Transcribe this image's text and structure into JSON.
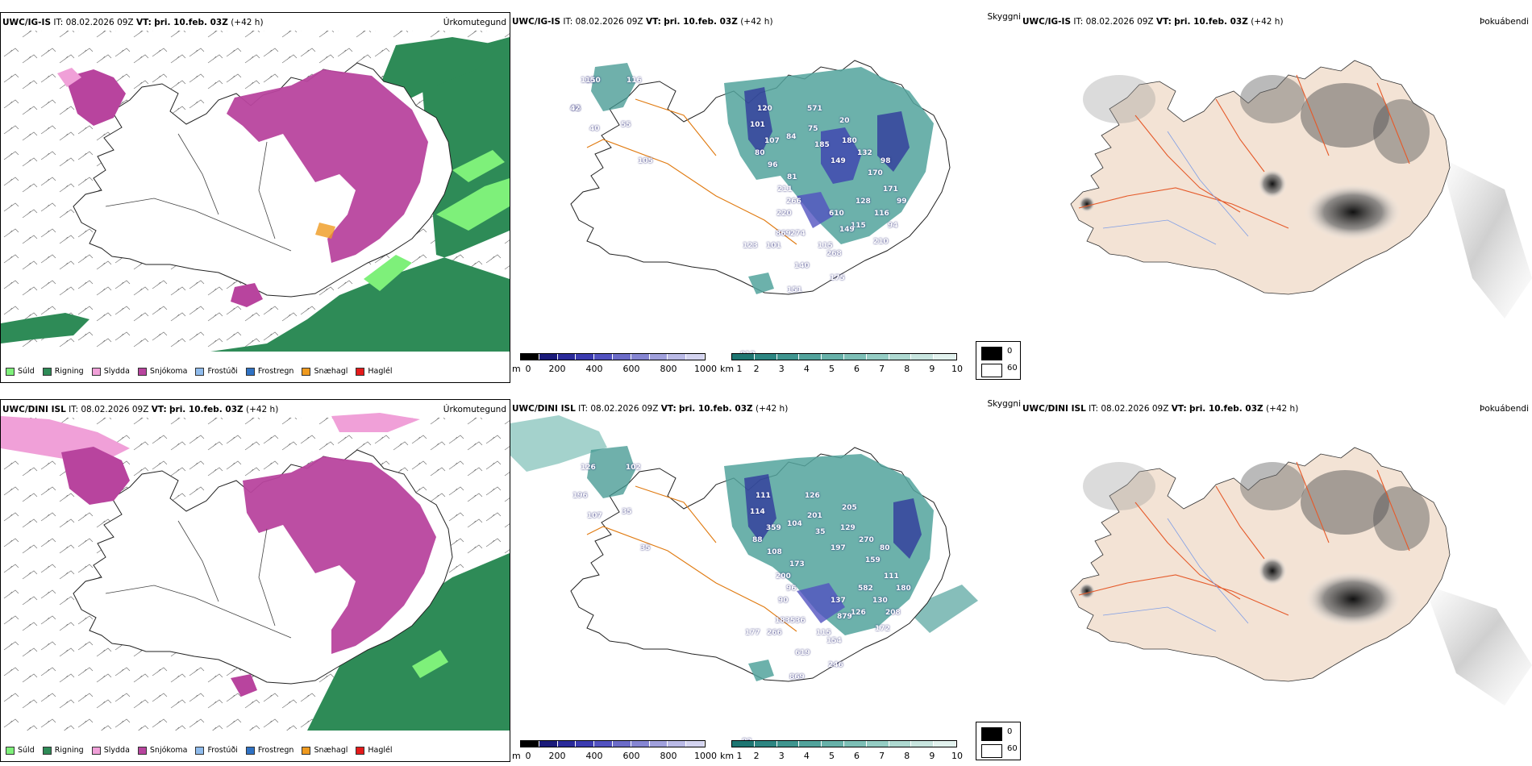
{
  "rows": [
    {
      "precip": {
        "model": "UWC/IG-IS",
        "it_label": "IT:",
        "it_value": "08.02.2026 09Z",
        "vt_label": "VT:",
        "vt_value": "þri. 10.feb. 03Z",
        "lead": "(+42 h)",
        "product": "Úrkomutegund"
      },
      "vis": {
        "model": "UWC/IG-IS",
        "it_label": "IT:",
        "it_value": "08.02.2026 09Z",
        "vt_label": "VT:",
        "vt_value": "þri. 10.feb. 03Z",
        "lead": "(+42 h)",
        "product": "Skyggni",
        "labels": [
          "111",
          "96",
          "40",
          "116",
          "55",
          "105",
          "120",
          "101",
          "107",
          "80",
          "96",
          "84",
          "81",
          "211",
          "266",
          "220",
          "571",
          "75",
          "185",
          "20",
          "180",
          "149",
          "132",
          "170",
          "98",
          "171",
          "128",
          "116",
          "115",
          "610",
          "149",
          "869",
          "101",
          "123",
          "115",
          "268",
          "210",
          "94",
          "99",
          "140",
          "151",
          "175",
          "274",
          "812",
          "150",
          "42"
        ]
      },
      "fog": {
        "model": "UWC/IG-IS",
        "it_label": "IT:",
        "it_value": "08.02.2026 09Z",
        "vt_label": "VT:",
        "vt_value": "þri. 10.feb. 03Z",
        "lead": "(+42 h)",
        "product": "Þokuábendi"
      }
    },
    {
      "precip": {
        "model": "UWC/DINI ISL",
        "it_label": "IT:",
        "it_value": "08.02.2026 09Z",
        "vt_label": "VT:",
        "vt_value": "þri. 10.feb. 03Z",
        "lead": "(+42 h)",
        "product": "Úrkomutegund"
      },
      "vis": {
        "model": "UWC/DINI ISL",
        "it_label": "IT:",
        "it_value": "08.02.2026 09Z",
        "vt_label": "VT:",
        "vt_value": "þri. 10.feb. 03Z",
        "lead": "(+42 h)",
        "product": "Skyggni",
        "labels": [
          "126",
          "196",
          "107",
          "102",
          "35",
          "35",
          "111",
          "114",
          "359",
          "88",
          "108",
          "104",
          "173",
          "200",
          "96",
          "90",
          "126",
          "201",
          "35",
          "205",
          "129",
          "197",
          "270",
          "159",
          "80",
          "111",
          "582",
          "130",
          "126",
          "137",
          "879",
          "183",
          "266",
          "177",
          "115",
          "154",
          "172",
          "208",
          "180",
          "619",
          "869",
          "246",
          "536",
          "83"
        ]
      },
      "fog": {
        "model": "UWC/DINI ISL",
        "it_label": "IT:",
        "it_value": "08.02.2026 09Z",
        "vt_label": "VT:",
        "vt_value": "þri. 10.feb. 03Z",
        "lead": "(+42 h)",
        "product": "Þokuábendi"
      }
    }
  ],
  "precip_legend": [
    {
      "label": "Súld",
      "color": "#7ef07a"
    },
    {
      "label": "Rigning",
      "color": "#2e8b57"
    },
    {
      "label": "Slydda",
      "color": "#f0a0d8"
    },
    {
      "label": "Snjókoma",
      "color": "#b8449e"
    },
    {
      "label": "Frostúði",
      "color": "#8fbbec"
    },
    {
      "label": "Frostregn",
      "color": "#2f72c4"
    },
    {
      "label": "Snæhagl",
      "color": "#ef9a1f"
    },
    {
      "label": "Haglél",
      "color": "#e41a1a"
    }
  ],
  "ceiling_scale": {
    "unit": "m",
    "ticks": [
      "0",
      "200",
      "400",
      "600",
      "800",
      "1000"
    ],
    "colors": [
      "#000000",
      "#1b1b7a",
      "#2a2a9a",
      "#3b3bb0",
      "#5252c0",
      "#6c6cc8",
      "#8686d2",
      "#a0a0dc",
      "#babae6",
      "#d4d4f0"
    ]
  },
  "visibility_scale": {
    "unit": "km",
    "ticks": [
      "1",
      "2",
      "3",
      "4",
      "5",
      "6",
      "7",
      "8",
      "9",
      "10"
    ],
    "colors": [
      "#1e7672",
      "#2d8682",
      "#3f958f",
      "#52a39c",
      "#67b1a9",
      "#7dbfb6",
      "#95cdc4",
      "#aed9d1",
      "#c8e5df",
      "#e2f2ee"
    ]
  },
  "fog_scale": {
    "ticks": [
      "0",
      "60"
    ]
  }
}
